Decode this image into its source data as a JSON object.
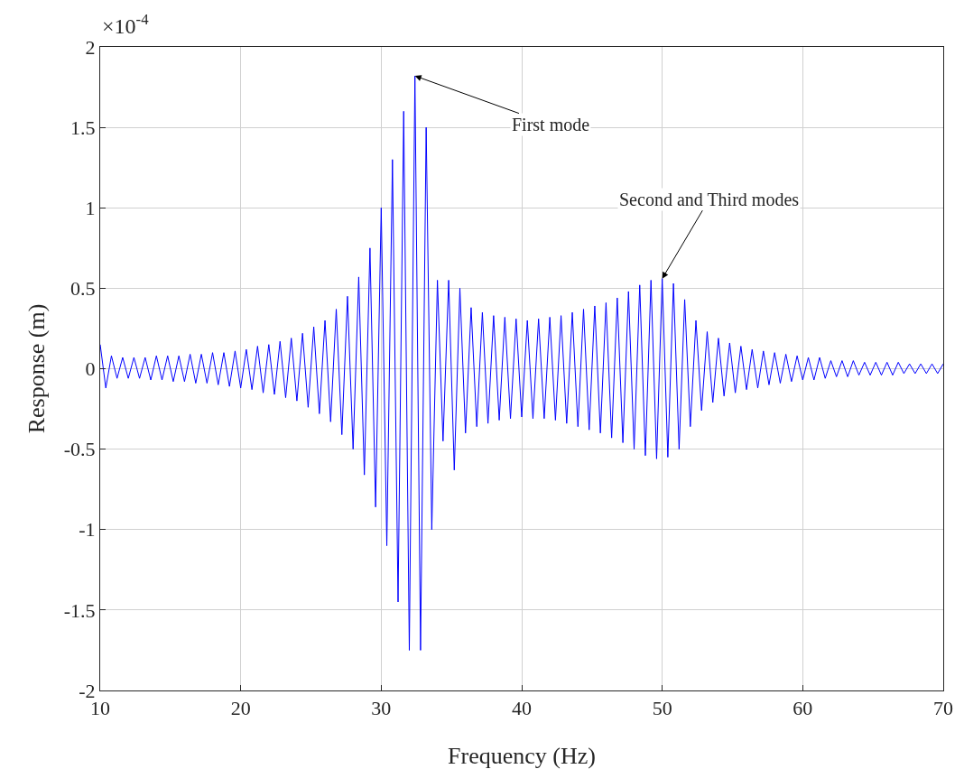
{
  "chart_data": {
    "type": "line",
    "xlabel": "Frequency (Hz)",
    "ylabel": "Response (m)",
    "annotations": [
      "×10$^{-4}$",
      {
        "text": "First mode",
        "x": 32.4,
        "y": 1.82
      },
      {
        "text": "Second and Third modes",
        "x": 50.0,
        "y": 0.56
      }
    ],
    "xlim": [
      10,
      70
    ],
    "xticks": [
      10,
      20,
      30,
      40,
      50,
      60,
      70
    ],
    "ylim": [
      -2,
      2
    ],
    "yticks": [
      -2,
      -1.5,
      -1,
      -0.5,
      0,
      0.5,
      1,
      1.5,
      2
    ],
    "grid": true,
    "marker": "none",
    "line_style": "solid",
    "x": [
      10.0,
      10.4,
      10.8,
      11.2,
      11.6,
      12.0,
      12.4,
      12.8,
      13.2,
      13.6,
      14.0,
      14.4,
      14.8,
      15.2,
      15.6,
      16.0,
      16.4,
      16.8,
      17.2,
      17.6,
      18.0,
      18.4,
      18.8,
      19.2,
      19.6,
      20.0,
      20.4,
      20.8,
      21.2,
      21.6,
      22.0,
      22.4,
      22.8,
      23.2,
      23.6,
      24.0,
      24.4,
      24.8,
      25.2,
      25.6,
      26.0,
      26.4,
      26.8,
      27.2,
      27.6,
      28.0,
      28.4,
      28.8,
      29.2,
      29.6,
      30.0,
      30.4,
      30.8,
      31.2,
      31.6,
      32.0,
      32.4,
      32.8,
      33.2,
      33.6,
      34.0,
      34.4,
      34.8,
      35.2,
      35.6,
      36.0,
      36.4,
      36.8,
      37.2,
      37.6,
      38.0,
      38.4,
      38.8,
      39.2,
      39.6,
      40.0,
      40.4,
      40.8,
      41.2,
      41.6,
      42.0,
      42.4,
      42.8,
      43.2,
      43.6,
      44.0,
      44.4,
      44.8,
      45.2,
      45.6,
      46.0,
      46.4,
      46.8,
      47.2,
      47.6,
      48.0,
      48.4,
      48.8,
      49.2,
      49.6,
      50.0,
      50.4,
      50.8,
      51.2,
      51.6,
      52.0,
      52.4,
      52.8,
      53.2,
      53.6,
      54.0,
      54.4,
      54.8,
      55.2,
      55.6,
      56.0,
      56.4,
      56.8,
      57.2,
      57.6,
      58.0,
      58.4,
      58.8,
      59.2,
      59.6,
      60.0,
      60.4,
      60.8,
      61.2,
      61.6,
      62.0,
      62.4,
      62.8,
      63.2,
      63.6,
      64.0,
      64.4,
      64.8,
      65.2,
      65.6,
      66.0,
      66.4,
      66.8,
      67.2,
      67.6,
      68.0,
      68.4,
      68.8,
      69.2,
      69.6,
      70.0
    ],
    "series": [
      {
        "color": "#0000ff",
        "values": [
          0.15,
          -0.12,
          0.08,
          -0.06,
          0.07,
          -0.06,
          0.07,
          -0.06,
          0.07,
          -0.07,
          0.08,
          -0.07,
          0.08,
          -0.08,
          0.08,
          -0.08,
          0.09,
          -0.09,
          0.09,
          -0.09,
          0.1,
          -0.1,
          0.1,
          -0.11,
          0.11,
          -0.12,
          0.12,
          -0.13,
          0.14,
          -0.15,
          0.15,
          -0.16,
          0.17,
          -0.18,
          0.19,
          -0.2,
          0.22,
          -0.24,
          0.26,
          -0.28,
          0.3,
          -0.33,
          0.37,
          -0.41,
          0.45,
          -0.5,
          0.57,
          -0.66,
          0.75,
          -0.86,
          1.0,
          -1.1,
          1.3,
          -1.45,
          1.6,
          -1.75,
          1.82,
          -1.75,
          1.5,
          -1.0,
          0.55,
          -0.45,
          0.55,
          -0.63,
          0.5,
          -0.4,
          0.38,
          -0.36,
          0.35,
          -0.34,
          0.33,
          -0.32,
          0.32,
          -0.31,
          0.31,
          -0.3,
          0.3,
          -0.31,
          0.31,
          -0.31,
          0.32,
          -0.32,
          0.33,
          -0.34,
          0.35,
          -0.36,
          0.37,
          -0.38,
          0.39,
          -0.4,
          0.41,
          -0.43,
          0.44,
          -0.46,
          0.48,
          -0.5,
          0.52,
          -0.54,
          0.55,
          -0.56,
          0.56,
          -0.55,
          0.53,
          -0.5,
          0.43,
          -0.36,
          0.3,
          -0.26,
          0.23,
          -0.21,
          0.19,
          -0.17,
          0.16,
          -0.15,
          0.14,
          -0.13,
          0.12,
          -0.12,
          0.11,
          -0.1,
          0.1,
          -0.09,
          0.09,
          -0.08,
          0.08,
          -0.07,
          0.07,
          -0.07,
          0.07,
          -0.06,
          0.05,
          -0.05,
          0.05,
          -0.05,
          0.05,
          -0.04,
          0.04,
          -0.04,
          0.04,
          -0.04,
          0.04,
          -0.04,
          0.04,
          -0.03,
          0.03,
          -0.03,
          0.03,
          -0.03,
          0.03,
          -0.03,
          0.03
        ]
      }
    ]
  }
}
